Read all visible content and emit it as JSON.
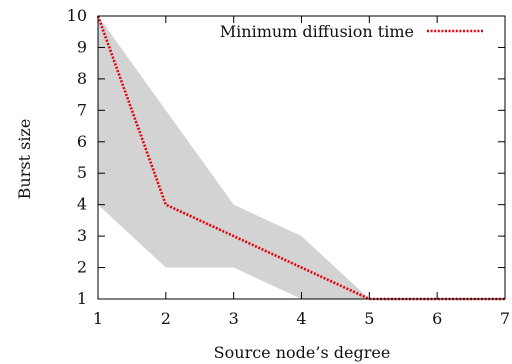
{
  "chart_data": {
    "type": "line",
    "xlabel": "Source node’s degree",
    "ylabel": "Burst size",
    "xlim": [
      1,
      7
    ],
    "ylim": [
      1,
      10
    ],
    "xticks": [
      "1",
      "2",
      "3",
      "4",
      "5",
      "6",
      "7"
    ],
    "yticks": [
      "1",
      "2",
      "3",
      "4",
      "5",
      "6",
      "7",
      "8",
      "9",
      "10"
    ],
    "grid": false,
    "legend_position": "top-right",
    "series": [
      {
        "name": "Minimum diffusion time",
        "color": "#e8000b",
        "style": "dotted",
        "x": [
          1,
          2,
          3,
          4,
          5,
          6,
          7
        ],
        "y": [
          10,
          4,
          3,
          2,
          1,
          1,
          1
        ]
      }
    ],
    "band": {
      "color": "#d3d3d3",
      "x": [
        1,
        2,
        3,
        4,
        5,
        6,
        7
      ],
      "lower": [
        4,
        2,
        2,
        1,
        1,
        1,
        1
      ],
      "upper": [
        10,
        7,
        4,
        3,
        1,
        1,
        1
      ]
    }
  }
}
